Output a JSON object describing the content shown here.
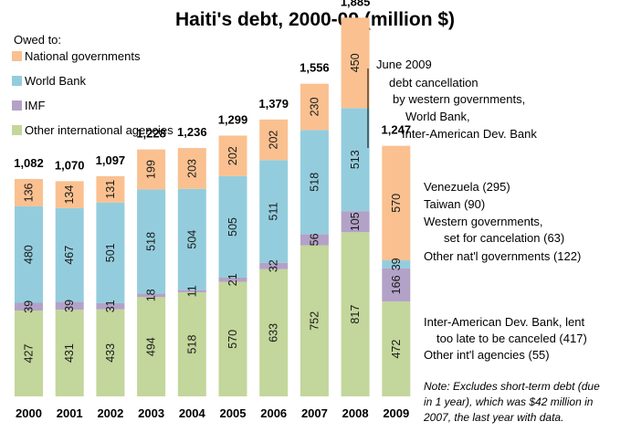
{
  "chart_data": {
    "type": "bar",
    "stacked": true,
    "title": "Haiti's debt, 2000-09 (million $)",
    "legend_title": "Owed to:",
    "legend_position": "top-left",
    "categories": [
      "2000",
      "2001",
      "2002",
      "2003",
      "2004",
      "2005",
      "2006",
      "2007",
      "2008",
      "2009"
    ],
    "series": [
      {
        "name": "Other international agencies",
        "color": "#c3d69b",
        "values": [
          427,
          431,
          433,
          494,
          518,
          570,
          633,
          752,
          817,
          472
        ],
        "labels": [
          "427",
          "431",
          "433",
          "494",
          "518",
          "570",
          "633",
          "752",
          "817",
          "472"
        ]
      },
      {
        "name": "IMF",
        "color": "#b3a2c7",
        "values": [
          39,
          39,
          31,
          18,
          11,
          21,
          32,
          56,
          105,
          166
        ],
        "labels": [
          "39",
          "39",
          "31",
          "18",
          "11",
          "21",
          "32",
          "56",
          "105",
          "166"
        ]
      },
      {
        "name": "World Bank",
        "color": "#93cddd",
        "values": [
          480,
          467,
          501,
          518,
          504,
          505,
          511,
          518,
          513,
          39
        ],
        "labels": [
          "480",
          "467",
          "501",
          "518",
          "504",
          "505",
          "511",
          "518",
          "513",
          "39"
        ]
      },
      {
        "name": "National governments",
        "color": "#fac090",
        "values": [
          136,
          134,
          131,
          199,
          203,
          202,
          202,
          230,
          450,
          570
        ],
        "labels": [
          "136",
          "134",
          "131",
          "199",
          "203",
          "202",
          "202",
          "230",
          "450",
          "570"
        ]
      }
    ],
    "totals": [
      "1,082",
      "1,070",
      "1,097",
      "1,228",
      "1,236",
      "1,299",
      "1,379",
      "1,556",
      "1,885",
      "1,247"
    ],
    "ylim": [
      0,
      1950
    ],
    "annotations": {
      "cancellation": [
        "June 2009",
        "debt cancellation",
        "by western governments,",
        "World Bank,",
        "Inter-American Dev. Bank"
      ],
      "national_breakdown": [
        "Venezuela (295)",
        "Taiwan (90)",
        "Western governments,",
        "set for cancelation (63)",
        "Other nat'l governments (122)"
      ],
      "other_breakdown": [
        "Inter-American Dev. Bank, lent",
        "too late to be canceled (417)",
        "Other int'l agencies (55)"
      ],
      "note": [
        "Note: Excludes short-term debt (due",
        "in 1 year), which was $42 million in",
        "2007, the last year with data."
      ]
    }
  }
}
